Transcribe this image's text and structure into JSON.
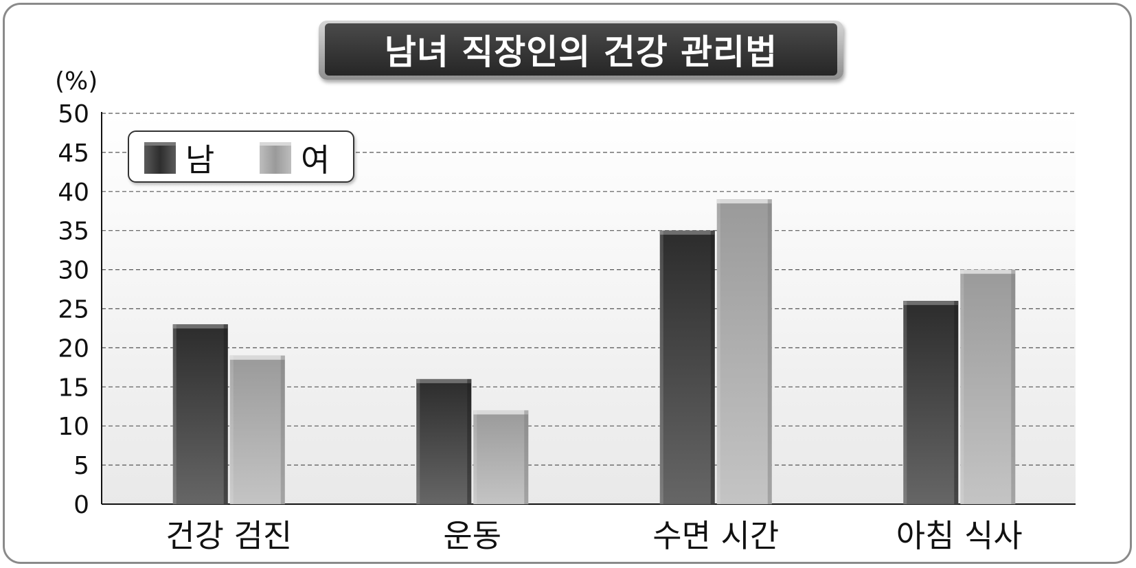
{
  "chart_data": {
    "type": "bar",
    "title": "남녀 직장인의 건강 관리법",
    "unit_label": "(%)",
    "categories": [
      "건강 검진",
      "운동",
      "수면 시간",
      "아침 식사"
    ],
    "series": [
      {
        "name": "남",
        "values": [
          23,
          16,
          35,
          26
        ],
        "color": "#3a3a3a"
      },
      {
        "name": "여",
        "values": [
          19,
          12,
          39,
          30
        ],
        "color": "#a8a8a8"
      }
    ],
    "ylim": [
      0,
      50
    ],
    "yticks": [
      0,
      5,
      10,
      15,
      20,
      25,
      30,
      35,
      40,
      45,
      50
    ],
    "grid": true,
    "legend_position": "top-left"
  }
}
